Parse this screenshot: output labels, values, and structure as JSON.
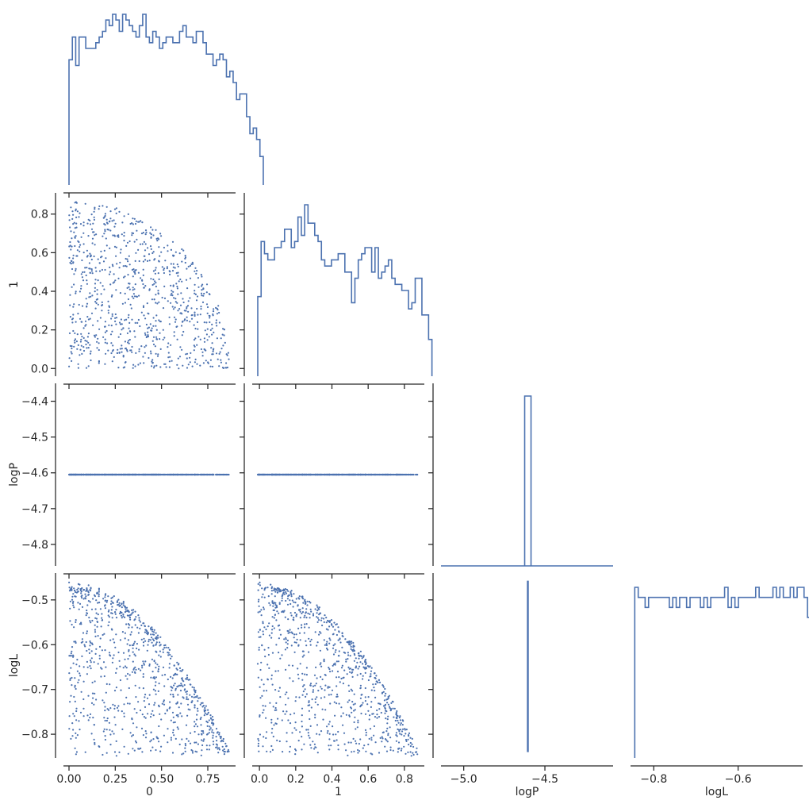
{
  "figure": {
    "variables": [
      "0",
      "1",
      "logP",
      "logL"
    ],
    "color": "#4c72b0",
    "axis_color": "#262626",
    "layout": "lower-triangle corner plot"
  },
  "chart_data": {
    "type": "corner",
    "diagonal_type": "step-histogram",
    "offdiagonal_type": "scatter",
    "variables": [
      "0",
      "1",
      "logP",
      "logL"
    ],
    "axes": [
      {
        "name": "0",
        "range": [
          -0.03,
          0.9
        ],
        "ticks": [
          0.0,
          0.25,
          0.5,
          0.75
        ],
        "tick_labels": [
          "0.00",
          "0.25",
          "0.50",
          "0.75"
        ]
      },
      {
        "name": "1",
        "range": [
          -0.04,
          0.91
        ],
        "ticks": [
          0.0,
          0.2,
          0.4,
          0.6,
          0.8
        ],
        "tick_labels": [
          "0.0",
          "0.2",
          "0.4",
          "0.6",
          "0.8"
        ]
      },
      {
        "name": "logP",
        "range": [
          -4.86,
          -4.35
        ],
        "ticks": [
          -4.8,
          -4.7,
          -4.6,
          -4.5,
          -4.4
        ],
        "tick_labels": [
          "−4.8",
          "−4.7",
          "−4.6",
          "−4.5",
          "−4.4"
        ],
        "diag_range": [
          -5.14,
          -4.08
        ],
        "diag_ticks": [
          -5.0,
          -4.5
        ],
        "diag_tick_labels": [
          "−5.0",
          "−4.5"
        ]
      },
      {
        "name": "logL",
        "range": [
          -0.853,
          -0.44
        ],
        "ticks": [
          -0.8,
          -0.7,
          -0.6,
          -0.5
        ],
        "tick_labels": [
          "−0.8",
          "−0.7",
          "−0.6",
          "−0.5"
        ],
        "diag_ticks": [
          -0.8,
          -0.6
        ],
        "diag_tick_labels": [
          "−0.8",
          "−0.6"
        ]
      }
    ],
    "histograms": [
      {
        "variable": "0",
        "edges_start": 0.0,
        "bin_width": 0.0181,
        "counts": [
          22,
          26,
          21,
          26,
          26,
          24,
          24,
          24,
          25,
          26,
          27,
          29,
          28,
          30,
          29,
          27,
          30,
          29,
          28,
          27,
          26,
          28,
          30,
          26,
          25,
          27,
          26,
          24,
          25,
          26,
          26,
          25,
          25,
          27,
          28,
          26,
          26,
          25,
          27,
          27,
          25,
          23,
          23,
          21,
          22,
          23,
          22,
          19,
          20,
          18,
          15,
          16,
          16,
          12,
          9,
          10,
          8,
          5
        ]
      },
      {
        "variable": "1",
        "edges_start": 0.0,
        "bin_width": 0.0181,
        "counts": [
          13,
          22,
          20,
          19,
          19,
          21,
          21,
          22,
          24,
          24,
          21,
          22,
          26,
          23,
          28,
          25,
          25,
          23,
          22,
          19,
          18,
          18,
          19,
          19,
          20,
          20,
          17,
          17,
          12,
          16,
          19,
          20,
          21,
          21,
          17,
          21,
          16,
          17,
          18,
          19,
          16,
          15,
          15,
          14,
          14,
          11,
          12,
          16,
          16,
          10,
          10,
          6
        ]
      },
      {
        "variable": "logP",
        "constant_value": -4.605,
        "range": [
          -5.14,
          -4.08
        ],
        "count_fraction": 1.0
      },
      {
        "variable": "logL",
        "edges_start": -0.845,
        "bin_width": 0.00819,
        "counts": [
          17,
          16,
          16,
          15,
          16,
          16,
          16,
          16,
          16,
          16,
          15,
          16,
          15,
          16,
          16,
          15,
          16,
          16,
          16,
          15,
          16,
          15,
          16,
          16,
          16,
          16,
          17,
          15,
          16,
          15,
          16,
          16,
          16,
          16,
          16,
          17,
          16,
          16,
          16,
          16,
          17,
          16,
          17,
          16,
          16,
          17,
          16,
          17,
          17,
          16,
          14,
          6
        ]
      }
    ],
    "scatter": [
      {
        "x": "0",
        "y": "1",
        "shape": "quarter-disc",
        "radius": 0.87,
        "n_points": 900
      },
      {
        "x": "0",
        "y": "logP",
        "constant_y": -4.605
      },
      {
        "x": "1",
        "y": "logP",
        "constant_y": -4.605
      },
      {
        "x": "0",
        "y": "logL",
        "relation": "upper envelope logL ≈ -0.46 - 0.5·x²",
        "min": -0.84
      },
      {
        "x": "1",
        "y": "logL",
        "relation": "upper envelope logL ≈ -0.46 - 0.5·x²",
        "min": -0.84
      },
      {
        "x": "logP",
        "y": "logL",
        "constant_x": -4.605
      }
    ]
  }
}
